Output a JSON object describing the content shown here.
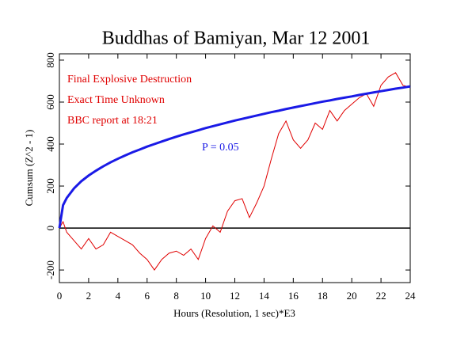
{
  "chart_data": {
    "type": "line",
    "title": "Buddhas of Bamiyan, Mar 12 2001",
    "xlabel": "Hours (Resolution, 1 sec)*E3",
    "ylabel": "Cumsum (Z^2 - 1)",
    "annotations": [
      "Final Explosive Destruction",
      "Exact Time Unknown",
      "BBC report at 18:21"
    ],
    "annotation_color": "#e00000",
    "x": [
      0,
      0.25,
      0.5,
      1,
      1.5,
      2,
      2.5,
      3,
      3.5,
      4,
      4.5,
      5,
      5.5,
      6,
      6.5,
      7,
      7.5,
      8,
      8.5,
      9,
      9.5,
      10,
      10.5,
      11,
      11.5,
      12,
      12.5,
      13,
      13.5,
      14,
      14.5,
      15,
      15.5,
      16,
      16.5,
      17,
      17.5,
      18,
      18.5,
      19,
      19.5,
      20,
      20.5,
      21,
      21.5,
      22,
      22.5,
      23,
      23.5,
      24
    ],
    "series": [
      {
        "color": "#e00000",
        "width": 1,
        "values": [
          0,
          30,
          -20,
          -60,
          -100,
          -50,
          -100,
          -80,
          -20,
          -40,
          -60,
          -80,
          -120,
          -150,
          -200,
          -150,
          -120,
          -110,
          -130,
          -100,
          -150,
          -50,
          10,
          -20,
          80,
          130,
          140,
          50,
          120,
          200,
          330,
          450,
          510,
          420,
          380,
          420,
          500,
          470,
          560,
          510,
          560,
          590,
          620,
          640,
          580,
          680,
          720,
          740,
          680,
          670
        ]
      },
      {
        "name": "P = 0.05",
        "color": "#1a1ae6",
        "width": 3,
        "values": [
          0,
          109,
          143,
          189,
          223,
          250,
          273,
          294,
          313,
          330,
          346,
          361,
          374,
          388,
          400,
          412,
          424,
          435,
          446,
          456,
          466,
          476,
          485,
          494,
          503,
          512,
          520,
          528,
          536,
          544,
          552,
          559,
          567,
          574,
          581,
          588,
          595,
          602,
          608,
          615,
          621,
          627,
          634,
          640,
          646,
          652,
          658,
          664,
          669,
          675
        ]
      }
    ],
    "reference_line": 0,
    "xlim": [
      0,
      24
    ],
    "xticks": [
      0,
      2,
      4,
      6,
      8,
      10,
      12,
      14,
      16,
      18,
      20,
      22,
      24
    ],
    "ylim": [
      -260,
      830
    ],
    "yticks": [
      -200,
      0,
      200,
      400,
      600,
      800
    ],
    "grid": false
  }
}
